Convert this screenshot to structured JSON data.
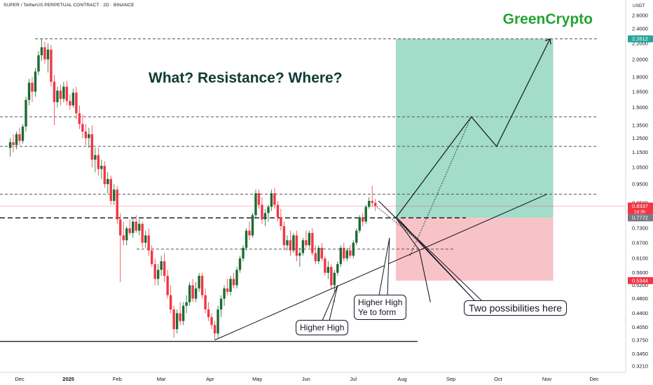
{
  "header": {
    "symbol_line": "SUPER / TetherUS PERPETUAL CONTRACT · 2D · BINANCE",
    "brand": "GreenCrypto"
  },
  "annotations": {
    "headline": "What? Resistance? Where?",
    "higher_high": "Higher High",
    "higher_high_forming_1": "Higher High",
    "higher_high_forming_2": "Ye to form",
    "two_possibilities": "Two possibilities here"
  },
  "price_axis": {
    "unit": "USDT",
    "scale": "log",
    "ticks": [
      "2.6000",
      "2.4000",
      "2.2000",
      "2.0000",
      "1.8000",
      "1.6500",
      "1.5000",
      "1.3500",
      "1.2500",
      "1.1500",
      "1.0500",
      "0.9500",
      "0.8500",
      "0.7300",
      "0.6700",
      "0.6100",
      "0.5600",
      "0.5200",
      "0.4800",
      "0.4400",
      "0.4050",
      "0.3750",
      "0.3450",
      "0.3210"
    ],
    "badges": [
      {
        "label": "2.2612",
        "value": 2.2612,
        "color": "#26a69a"
      },
      {
        "label": "0.8337",
        "sub": "1d 3h",
        "value": 0.8337,
        "color": "#f23645"
      },
      {
        "label": "0.7772",
        "value": 0.7772,
        "color": "#787b86"
      },
      {
        "label": "0.5344",
        "value": 0.5344,
        "color": "#f23645"
      }
    ]
  },
  "time_axis": {
    "labels": [
      "Dec",
      "2025",
      "Feb",
      "Mar",
      "Apr",
      "May",
      "Jun",
      "Jul",
      "Aug",
      "Sep",
      "Oct",
      "Nov",
      "Dec"
    ]
  },
  "colors": {
    "up": "#26a69a",
    "up_dark": "#1b6b33",
    "down": "#f23645",
    "target_zone": "#a3dcc9",
    "stop_zone": "#f8c3c7",
    "brand": "#22a533"
  },
  "chart_data": {
    "type": "candlestick",
    "timeframe": "2D",
    "x_range": [
      "2024-11-25",
      "2025-12-10"
    ],
    "ylim": [
      0.3,
      2.7
    ],
    "y_scale": "log",
    "candles": [
      {
        "d": "2024-11-25",
        "o": 1.18,
        "h": 1.25,
        "l": 1.12,
        "c": 1.22
      },
      {
        "d": "2024-11-27",
        "o": 1.22,
        "h": 1.28,
        "l": 1.15,
        "c": 1.2
      },
      {
        "d": "2024-11-29",
        "o": 1.2,
        "h": 1.3,
        "l": 1.17,
        "c": 1.28
      },
      {
        "d": "2024-12-01",
        "o": 1.28,
        "h": 1.33,
        "l": 1.2,
        "c": 1.23
      },
      {
        "d": "2024-12-03",
        "o": 1.23,
        "h": 1.36,
        "l": 1.21,
        "c": 1.34
      },
      {
        "d": "2024-12-05",
        "o": 1.34,
        "h": 1.6,
        "l": 1.3,
        "c": 1.57
      },
      {
        "d": "2024-12-07",
        "o": 1.57,
        "h": 1.78,
        "l": 1.52,
        "c": 1.74
      },
      {
        "d": "2024-12-09",
        "o": 1.74,
        "h": 1.8,
        "l": 1.55,
        "c": 1.65
      },
      {
        "d": "2024-12-11",
        "o": 1.65,
        "h": 1.9,
        "l": 1.6,
        "c": 1.86
      },
      {
        "d": "2024-12-13",
        "o": 1.86,
        "h": 2.1,
        "l": 1.82,
        "c": 2.05
      },
      {
        "d": "2024-12-15",
        "o": 2.05,
        "h": 2.26,
        "l": 1.98,
        "c": 2.15
      },
      {
        "d": "2024-12-17",
        "o": 2.15,
        "h": 2.22,
        "l": 1.95,
        "c": 2.0
      },
      {
        "d": "2024-12-19",
        "o": 2.0,
        "h": 2.2,
        "l": 1.85,
        "c": 2.12
      },
      {
        "d": "2024-12-21",
        "o": 2.12,
        "h": 2.18,
        "l": 1.7,
        "c": 1.75
      },
      {
        "d": "2024-12-23",
        "o": 1.75,
        "h": 1.82,
        "l": 1.35,
        "c": 1.55
      },
      {
        "d": "2024-12-25",
        "o": 1.55,
        "h": 1.7,
        "l": 1.5,
        "c": 1.66
      },
      {
        "d": "2024-12-27",
        "o": 1.66,
        "h": 1.72,
        "l": 1.52,
        "c": 1.58
      },
      {
        "d": "2024-12-29",
        "o": 1.58,
        "h": 1.75,
        "l": 1.55,
        "c": 1.7
      },
      {
        "d": "2024-12-31",
        "o": 1.7,
        "h": 1.76,
        "l": 1.52,
        "c": 1.56
      },
      {
        "d": "2025-01-02",
        "o": 1.56,
        "h": 1.62,
        "l": 1.48,
        "c": 1.52
      },
      {
        "d": "2025-01-04",
        "o": 1.52,
        "h": 1.68,
        "l": 1.5,
        "c": 1.64
      },
      {
        "d": "2025-01-06",
        "o": 1.64,
        "h": 1.7,
        "l": 1.4,
        "c": 1.45
      },
      {
        "d": "2025-01-08",
        "o": 1.45,
        "h": 1.52,
        "l": 1.32,
        "c": 1.36
      },
      {
        "d": "2025-01-10",
        "o": 1.36,
        "h": 1.44,
        "l": 1.25,
        "c": 1.3
      },
      {
        "d": "2025-01-12",
        "o": 1.3,
        "h": 1.36,
        "l": 1.2,
        "c": 1.25
      },
      {
        "d": "2025-01-14",
        "o": 1.25,
        "h": 1.33,
        "l": 1.18,
        "c": 1.28
      },
      {
        "d": "2025-01-16",
        "o": 1.28,
        "h": 1.35,
        "l": 1.05,
        "c": 1.1
      },
      {
        "d": "2025-01-18",
        "o": 1.1,
        "h": 1.18,
        "l": 1.02,
        "c": 1.13
      },
      {
        "d": "2025-01-20",
        "o": 1.13,
        "h": 1.18,
        "l": 1.0,
        "c": 1.04
      },
      {
        "d": "2025-01-22",
        "o": 1.04,
        "h": 1.1,
        "l": 0.98,
        "c": 1.06
      },
      {
        "d": "2025-01-24",
        "o": 1.06,
        "h": 1.09,
        "l": 0.93,
        "c": 0.95
      },
      {
        "d": "2025-01-26",
        "o": 0.95,
        "h": 1.02,
        "l": 0.9,
        "c": 0.98
      },
      {
        "d": "2025-01-28",
        "o": 0.98,
        "h": 1.0,
        "l": 0.84,
        "c": 0.86
      },
      {
        "d": "2025-01-30",
        "o": 0.86,
        "h": 0.95,
        "l": 0.84,
        "c": 0.92
      },
      {
        "d": "2025-02-01",
        "o": 0.92,
        "h": 0.94,
        "l": 0.75,
        "c": 0.77
      },
      {
        "d": "2025-02-03",
        "o": 0.77,
        "h": 0.8,
        "l": 0.53,
        "c": 0.7
      },
      {
        "d": "2025-02-05",
        "o": 0.7,
        "h": 0.76,
        "l": 0.66,
        "c": 0.68
      },
      {
        "d": "2025-02-07",
        "o": 0.68,
        "h": 0.74,
        "l": 0.66,
        "c": 0.73
      },
      {
        "d": "2025-02-09",
        "o": 0.73,
        "h": 0.77,
        "l": 0.7,
        "c": 0.71
      },
      {
        "d": "2025-02-11",
        "o": 0.71,
        "h": 0.78,
        "l": 0.69,
        "c": 0.76
      },
      {
        "d": "2025-02-13",
        "o": 0.76,
        "h": 0.79,
        "l": 0.71,
        "c": 0.72
      },
      {
        "d": "2025-02-15",
        "o": 0.72,
        "h": 0.77,
        "l": 0.7,
        "c": 0.75
      },
      {
        "d": "2025-02-17",
        "o": 0.75,
        "h": 0.76,
        "l": 0.65,
        "c": 0.67
      },
      {
        "d": "2025-02-19",
        "o": 0.67,
        "h": 0.72,
        "l": 0.65,
        "c": 0.7
      },
      {
        "d": "2025-02-21",
        "o": 0.7,
        "h": 0.73,
        "l": 0.62,
        "c": 0.64
      },
      {
        "d": "2025-02-23",
        "o": 0.64,
        "h": 0.66,
        "l": 0.58,
        "c": 0.59
      },
      {
        "d": "2025-02-25",
        "o": 0.59,
        "h": 0.61,
        "l": 0.52,
        "c": 0.54
      },
      {
        "d": "2025-02-27",
        "o": 0.54,
        "h": 0.59,
        "l": 0.52,
        "c": 0.57
      },
      {
        "d": "2025-03-01",
        "o": 0.57,
        "h": 0.62,
        "l": 0.55,
        "c": 0.6
      },
      {
        "d": "2025-03-03",
        "o": 0.6,
        "h": 0.63,
        "l": 0.53,
        "c": 0.55
      },
      {
        "d": "2025-03-05",
        "o": 0.55,
        "h": 0.57,
        "l": 0.48,
        "c": 0.49
      },
      {
        "d": "2025-03-07",
        "o": 0.49,
        "h": 0.52,
        "l": 0.44,
        "c": 0.45
      },
      {
        "d": "2025-03-09",
        "o": 0.45,
        "h": 0.46,
        "l": 0.38,
        "c": 0.4
      },
      {
        "d": "2025-03-11",
        "o": 0.4,
        "h": 0.45,
        "l": 0.39,
        "c": 0.44
      },
      {
        "d": "2025-03-13",
        "o": 0.44,
        "h": 0.47,
        "l": 0.41,
        "c": 0.42
      },
      {
        "d": "2025-03-15",
        "o": 0.42,
        "h": 0.47,
        "l": 0.41,
        "c": 0.46
      },
      {
        "d": "2025-03-17",
        "o": 0.46,
        "h": 0.49,
        "l": 0.44,
        "c": 0.47
      },
      {
        "d": "2025-03-19",
        "o": 0.47,
        "h": 0.53,
        "l": 0.46,
        "c": 0.52
      },
      {
        "d": "2025-03-21",
        "o": 0.52,
        "h": 0.54,
        "l": 0.47,
        "c": 0.48
      },
      {
        "d": "2025-03-23",
        "o": 0.48,
        "h": 0.53,
        "l": 0.47,
        "c": 0.51
      },
      {
        "d": "2025-03-25",
        "o": 0.51,
        "h": 0.56,
        "l": 0.5,
        "c": 0.55
      },
      {
        "d": "2025-03-27",
        "o": 0.55,
        "h": 0.56,
        "l": 0.48,
        "c": 0.49
      },
      {
        "d": "2025-03-29",
        "o": 0.49,
        "h": 0.51,
        "l": 0.44,
        "c": 0.45
      },
      {
        "d": "2025-03-31",
        "o": 0.45,
        "h": 0.47,
        "l": 0.42,
        "c": 0.43
      },
      {
        "d": "2025-04-02",
        "o": 0.43,
        "h": 0.44,
        "l": 0.4,
        "c": 0.41
      },
      {
        "d": "2025-04-04",
        "o": 0.41,
        "h": 0.42,
        "l": 0.375,
        "c": 0.39
      },
      {
        "d": "2025-04-06",
        "o": 0.39,
        "h": 0.46,
        "l": 0.38,
        "c": 0.45
      },
      {
        "d": "2025-04-08",
        "o": 0.45,
        "h": 0.49,
        "l": 0.43,
        "c": 0.48
      },
      {
        "d": "2025-04-10",
        "o": 0.48,
        "h": 0.52,
        "l": 0.46,
        "c": 0.51
      },
      {
        "d": "2025-04-12",
        "o": 0.51,
        "h": 0.54,
        "l": 0.49,
        "c": 0.5
      },
      {
        "d": "2025-04-14",
        "o": 0.5,
        "h": 0.55,
        "l": 0.49,
        "c": 0.54
      },
      {
        "d": "2025-04-16",
        "o": 0.54,
        "h": 0.56,
        "l": 0.51,
        "c": 0.52
      },
      {
        "d": "2025-04-18",
        "o": 0.52,
        "h": 0.58,
        "l": 0.51,
        "c": 0.57
      },
      {
        "d": "2025-04-20",
        "o": 0.57,
        "h": 0.62,
        "l": 0.56,
        "c": 0.61
      },
      {
        "d": "2025-04-22",
        "o": 0.61,
        "h": 0.66,
        "l": 0.6,
        "c": 0.65
      },
      {
        "d": "2025-04-24",
        "o": 0.65,
        "h": 0.73,
        "l": 0.64,
        "c": 0.72
      },
      {
        "d": "2025-04-26",
        "o": 0.72,
        "h": 0.76,
        "l": 0.68,
        "c": 0.7
      },
      {
        "d": "2025-04-28",
        "o": 0.7,
        "h": 0.8,
        "l": 0.69,
        "c": 0.79
      },
      {
        "d": "2025-04-30",
        "o": 0.79,
        "h": 0.92,
        "l": 0.78,
        "c": 0.9
      },
      {
        "d": "2025-05-02",
        "o": 0.9,
        "h": 0.92,
        "l": 0.82,
        "c": 0.84
      },
      {
        "d": "2025-05-04",
        "o": 0.84,
        "h": 0.88,
        "l": 0.75,
        "c": 0.77
      },
      {
        "d": "2025-05-06",
        "o": 0.77,
        "h": 0.82,
        "l": 0.74,
        "c": 0.8
      },
      {
        "d": "2025-05-08",
        "o": 0.8,
        "h": 0.84,
        "l": 0.76,
        "c": 0.83
      },
      {
        "d": "2025-05-10",
        "o": 0.83,
        "h": 0.92,
        "l": 0.81,
        "c": 0.9
      },
      {
        "d": "2025-05-12",
        "o": 0.9,
        "h": 0.93,
        "l": 0.82,
        "c": 0.84
      },
      {
        "d": "2025-05-14",
        "o": 0.84,
        "h": 0.86,
        "l": 0.76,
        "c": 0.78
      },
      {
        "d": "2025-05-16",
        "o": 0.78,
        "h": 0.82,
        "l": 0.72,
        "c": 0.74
      },
      {
        "d": "2025-05-18",
        "o": 0.74,
        "h": 0.76,
        "l": 0.64,
        "c": 0.66
      },
      {
        "d": "2025-05-20",
        "o": 0.66,
        "h": 0.7,
        "l": 0.64,
        "c": 0.68
      },
      {
        "d": "2025-05-22",
        "o": 0.68,
        "h": 0.72,
        "l": 0.62,
        "c": 0.64
      },
      {
        "d": "2025-05-24",
        "o": 0.64,
        "h": 0.71,
        "l": 0.63,
        "c": 0.7
      },
      {
        "d": "2025-05-26",
        "o": 0.7,
        "h": 0.72,
        "l": 0.6,
        "c": 0.62
      },
      {
        "d": "2025-05-28",
        "o": 0.62,
        "h": 0.65,
        "l": 0.58,
        "c": 0.63
      },
      {
        "d": "2025-05-30",
        "o": 0.63,
        "h": 0.69,
        "l": 0.62,
        "c": 0.68
      },
      {
        "d": "2025-06-01",
        "o": 0.68,
        "h": 0.72,
        "l": 0.65,
        "c": 0.66
      },
      {
        "d": "2025-06-03",
        "o": 0.66,
        "h": 0.72,
        "l": 0.65,
        "c": 0.71
      },
      {
        "d": "2025-06-05",
        "o": 0.71,
        "h": 0.73,
        "l": 0.62,
        "c": 0.63
      },
      {
        "d": "2025-06-07",
        "o": 0.63,
        "h": 0.66,
        "l": 0.59,
        "c": 0.6
      },
      {
        "d": "2025-06-09",
        "o": 0.6,
        "h": 0.66,
        "l": 0.59,
        "c": 0.65
      },
      {
        "d": "2025-06-11",
        "o": 0.65,
        "h": 0.67,
        "l": 0.6,
        "c": 0.61
      },
      {
        "d": "2025-06-13",
        "o": 0.61,
        "h": 0.62,
        "l": 0.55,
        "c": 0.56
      },
      {
        "d": "2025-06-15",
        "o": 0.56,
        "h": 0.6,
        "l": 0.54,
        "c": 0.58
      },
      {
        "d": "2025-06-17",
        "o": 0.58,
        "h": 0.59,
        "l": 0.51,
        "c": 0.52
      },
      {
        "d": "2025-06-19",
        "o": 0.52,
        "h": 0.57,
        "l": 0.47,
        "c": 0.56
      },
      {
        "d": "2025-06-21",
        "o": 0.56,
        "h": 0.6,
        "l": 0.55,
        "c": 0.59
      },
      {
        "d": "2025-06-23",
        "o": 0.59,
        "h": 0.66,
        "l": 0.58,
        "c": 0.65
      },
      {
        "d": "2025-06-25",
        "o": 0.65,
        "h": 0.67,
        "l": 0.6,
        "c": 0.61
      },
      {
        "d": "2025-06-27",
        "o": 0.61,
        "h": 0.65,
        "l": 0.6,
        "c": 0.64
      },
      {
        "d": "2025-06-29",
        "o": 0.64,
        "h": 0.66,
        "l": 0.61,
        "c": 0.62
      },
      {
        "d": "2025-07-01",
        "o": 0.62,
        "h": 0.68,
        "l": 0.61,
        "c": 0.67
      },
      {
        "d": "2025-07-03",
        "o": 0.67,
        "h": 0.73,
        "l": 0.66,
        "c": 0.72
      },
      {
        "d": "2025-07-05",
        "o": 0.72,
        "h": 0.79,
        "l": 0.71,
        "c": 0.78
      },
      {
        "d": "2025-07-07",
        "o": 0.78,
        "h": 0.8,
        "l": 0.74,
        "c": 0.76
      },
      {
        "d": "2025-07-09",
        "o": 0.76,
        "h": 0.84,
        "l": 0.75,
        "c": 0.83
      },
      {
        "d": "2025-07-11",
        "o": 0.83,
        "h": 0.88,
        "l": 0.82,
        "c": 0.86
      },
      {
        "d": "2025-07-13",
        "o": 0.86,
        "h": 0.94,
        "l": 0.83,
        "c": 0.85
      },
      {
        "d": "2025-07-15",
        "o": 0.85,
        "h": 0.87,
        "l": 0.81,
        "c": 0.8337
      }
    ],
    "levels": [
      {
        "price": 2.2612,
        "style": "dashed"
      },
      {
        "price": 1.42,
        "style": "dashed"
      },
      {
        "price": 1.19,
        "style": "dashed"
      },
      {
        "price": 0.895,
        "style": "dashed"
      },
      {
        "price": 0.7772,
        "style": "dashed-bold"
      },
      {
        "price": 0.645,
        "style": "dashed"
      },
      {
        "price": 0.372,
        "style": "solid"
      }
    ],
    "trendline": {
      "from": {
        "d": "2025-04-04",
        "p": 0.375
      },
      "to": {
        "d": "2025-11-01",
        "p": 0.895
      }
    },
    "position": {
      "start": "2025-07-28",
      "end": "2025-11-05",
      "entry": 0.7772,
      "target": 2.2612,
      "stop": 0.5344
    },
    "projection": [
      {
        "d": "2025-07-28",
        "p": 0.7772
      },
      {
        "d": "2025-09-14",
        "p": 1.42
      },
      {
        "d": "2025-09-30",
        "p": 1.19
      },
      {
        "d": "2025-11-03",
        "p": 2.2612
      }
    ],
    "alt_path": [
      {
        "d": "2025-07-17",
        "p": 0.86
      },
      {
        "d": "2025-07-28",
        "p": 0.7772
      },
      {
        "d": "2025-08-12",
        "p": 0.64
      },
      {
        "d": "2025-08-19",
        "p": 0.47
      }
    ],
    "dotted_paths": [
      [
        {
          "d": "2025-07-16",
          "p": 0.83
        },
        {
          "d": "2025-08-18",
          "p": 0.645
        }
      ],
      [
        {
          "d": "2025-08-06",
          "p": 0.62
        },
        {
          "d": "2025-09-14",
          "p": 1.42
        }
      ]
    ],
    "higher_high_pointer": [
      {
        "d": "2025-07-08",
        "p": 0.43
      },
      {
        "d": "2025-07-24",
        "p": 0.69
      }
    ]
  }
}
